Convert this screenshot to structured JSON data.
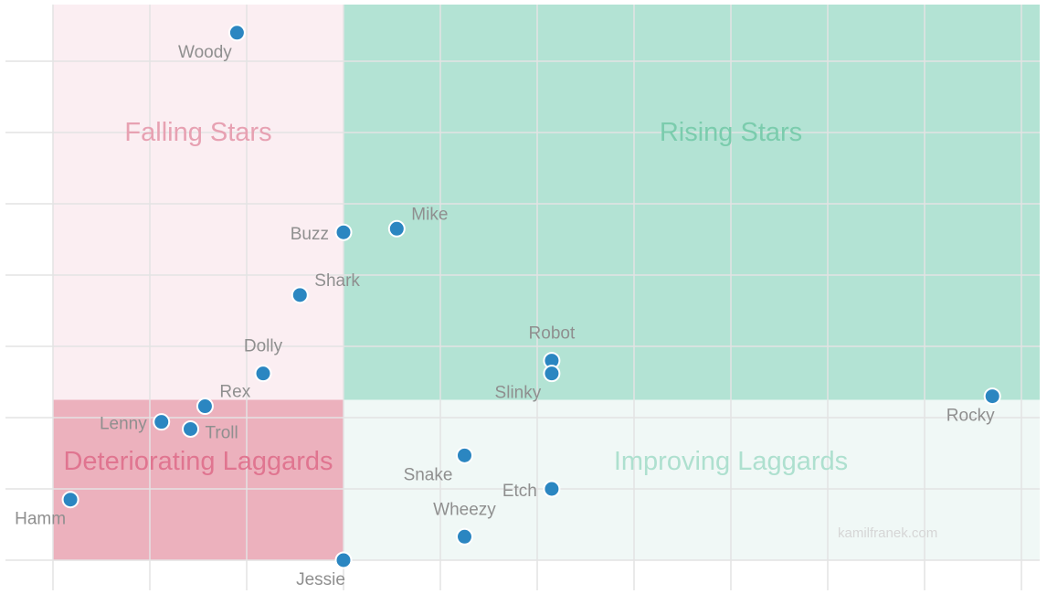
{
  "chart_data": {
    "type": "scatter",
    "title": "",
    "xlabel": "",
    "ylabel": "",
    "xlim": [
      -0.5,
      10.2
    ],
    "ylim": [
      0,
      7.85
    ],
    "grid": true,
    "quadrants": [
      {
        "name": "Falling Stars",
        "x": [
          0,
          3
        ],
        "y": [
          2.25,
          7.85
        ],
        "fill": "#fbeef2",
        "text_color": "#e7a1b2"
      },
      {
        "name": "Rising Stars",
        "x": [
          3,
          10.2
        ],
        "y": [
          2.25,
          7.85
        ],
        "fill": "#b3e3d4",
        "text_color": "#7bccad"
      },
      {
        "name": "Deteriorating Laggards",
        "x": [
          0,
          3
        ],
        "y": [
          0,
          2.25
        ],
        "fill": "#ecb1bd",
        "text_color": "#e07590"
      },
      {
        "name": "Improving Laggards",
        "x": [
          3,
          10.2
        ],
        "y": [
          0,
          2.25
        ],
        "fill": "#f0f8f6",
        "text_color": "#aee0cf"
      }
    ],
    "points": [
      {
        "name": "Woody",
        "x": 1.9,
        "y": 7.4,
        "label_pos": "below-left"
      },
      {
        "name": "Mike",
        "x": 3.55,
        "y": 4.65,
        "label_pos": "above-right"
      },
      {
        "name": "Buzz",
        "x": 3.0,
        "y": 4.6,
        "label_pos": "left"
      },
      {
        "name": "Shark",
        "x": 2.55,
        "y": 3.72,
        "label_pos": "above-right"
      },
      {
        "name": "Robot",
        "x": 5.15,
        "y": 2.8,
        "label_pos": "above"
      },
      {
        "name": "Slinky",
        "x": 5.15,
        "y": 2.62,
        "label_pos": "below-left"
      },
      {
        "name": "Dolly",
        "x": 2.17,
        "y": 2.62,
        "label_pos": "above"
      },
      {
        "name": "Rex",
        "x": 1.57,
        "y": 2.16,
        "label_pos": "above-right"
      },
      {
        "name": "Lenny",
        "x": 1.12,
        "y": 1.94,
        "label_pos": "left"
      },
      {
        "name": "Troll",
        "x": 1.42,
        "y": 1.84,
        "label_pos": "right"
      },
      {
        "name": "Rocky",
        "x": 9.7,
        "y": 2.3,
        "label_pos": "below-left"
      },
      {
        "name": "Snake",
        "x": 4.25,
        "y": 1.47,
        "label_pos": "below-left"
      },
      {
        "name": "Etch",
        "x": 5.15,
        "y": 1.0,
        "label_pos": "left"
      },
      {
        "name": "Hamm",
        "x": 0.18,
        "y": 0.85,
        "label_pos": "below-left"
      },
      {
        "name": "Wheezy",
        "x": 4.25,
        "y": 0.33,
        "label_pos": "above"
      },
      {
        "name": "Jessie",
        "x": 3.0,
        "y": 0.0,
        "label_pos": "below-left"
      }
    ],
    "point_color": "#2b86c1",
    "watermark": "kamilfranek.com"
  }
}
